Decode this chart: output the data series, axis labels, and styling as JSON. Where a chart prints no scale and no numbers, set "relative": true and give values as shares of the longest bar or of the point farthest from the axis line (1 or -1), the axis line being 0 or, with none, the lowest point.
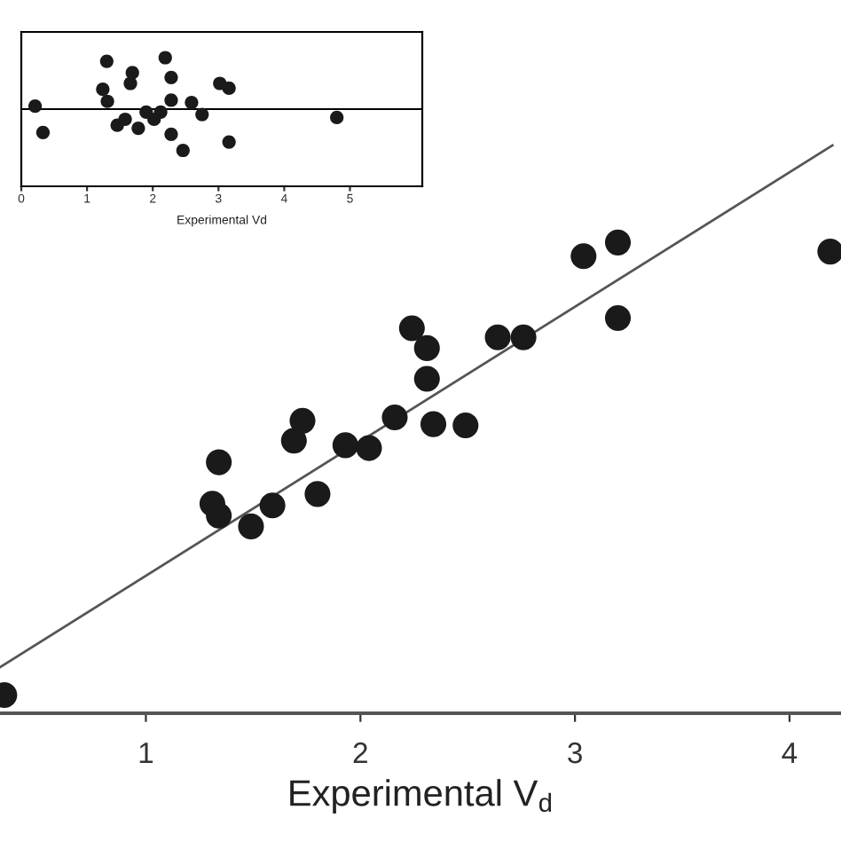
{
  "chart_data": [
    {
      "type": "scatter",
      "xlabel": "Experimental V$_{d}$",
      "relative": true,
      "xlim": [
        0.32,
        4.24
      ],
      "xticks": [
        1,
        2,
        3,
        4
      ],
      "grid": false,
      "legend": false,
      "series": [
        {
          "marker": "circle",
          "color": "#1a1a1a",
          "x": [
            0.34,
            1.34,
            1.31,
            1.34,
            1.49,
            1.59,
            1.8,
            1.69,
            1.73,
            1.93,
            2.04,
            2.16,
            2.24,
            2.31,
            2.31,
            2.34,
            2.49,
            2.64,
            2.76,
            3.04,
            3.2,
            3.2,
            4.19
          ],
          "values": [
            0.032,
            0.442,
            0.369,
            0.348,
            0.329,
            0.366,
            0.386,
            0.48,
            0.515,
            0.472,
            0.467,
            0.521,
            0.678,
            0.643,
            0.589,
            0.509,
            0.507,
            0.662,
            0.662,
            0.805,
            0.829,
            0.696,
            0.813
          ]
        },
        {
          "type": "line",
          "color": "#555555",
          "x": [
            0.32,
            4.2
          ],
          "values": [
            0.081,
            1.0
          ]
        }
      ]
    },
    {
      "type": "scatter",
      "xlabel": "Experimental Vd",
      "relative": true,
      "xlim": [
        0,
        6.1
      ],
      "xticks": [
        0,
        1,
        2,
        3,
        4,
        5
      ],
      "grid": false,
      "legend": false,
      "ref_lines": [
        {
          "axis": "y",
          "value": 0,
          "color": "#000000"
        }
      ],
      "series": [
        {
          "marker": "circle",
          "color": "#1a1a1a",
          "x": [
            0.21,
            0.33,
            1.3,
            1.24,
            1.31,
            1.46,
            1.58,
            1.69,
            1.66,
            1.78,
            1.9,
            2.02,
            2.12,
            2.19,
            2.28,
            2.28,
            2.28,
            2.46,
            2.59,
            2.75,
            3.02,
            3.16,
            3.16,
            4.8
          ],
          "values": [
            0.058,
            -0.453,
            0.93,
            0.384,
            0.151,
            -0.314,
            -0.198,
            0.709,
            0.5,
            -0.372,
            -0.058,
            -0.198,
            -0.058,
            1.0,
            0.616,
            0.174,
            -0.488,
            -0.802,
            0.128,
            -0.105,
            0.5,
            0.407,
            -0.64,
            -0.163
          ]
        }
      ]
    }
  ]
}
